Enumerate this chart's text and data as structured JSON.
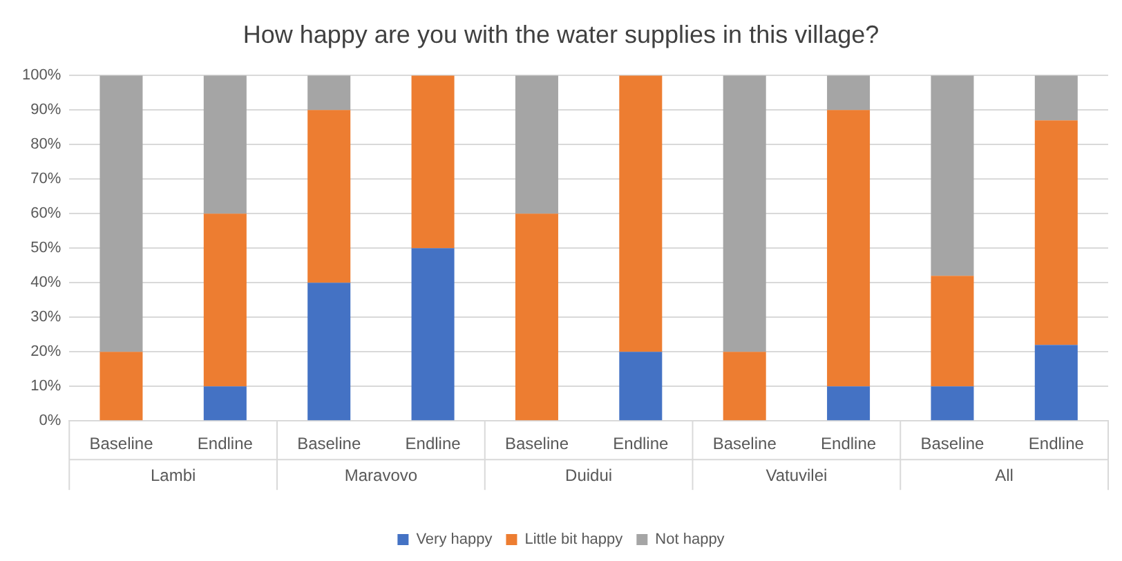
{
  "chart_data": {
    "type": "bar",
    "stacked": true,
    "title": "How happy are you with the water supplies in this village?",
    "categories": [
      "Baseline",
      "Endline",
      "Baseline",
      "Endline",
      "Baseline",
      "Endline",
      "Baseline",
      "Endline",
      "Baseline",
      "Endline"
    ],
    "annotations": [
      "Lambi",
      "Maravovo",
      "Duidui",
      "Vatuvilei",
      "All"
    ],
    "series": [
      {
        "name": "Very happy",
        "color": "#4472c4",
        "values": [
          0,
          10,
          40,
          50,
          0,
          20,
          0,
          10,
          10,
          22
        ]
      },
      {
        "name": "Little bit happy",
        "color": "#ed7d31",
        "values": [
          20,
          50,
          50,
          50,
          60,
          80,
          20,
          80,
          32,
          65
        ]
      },
      {
        "name": "Not happy",
        "color": "#a5a5a5",
        "values": [
          80,
          40,
          10,
          0,
          40,
          0,
          80,
          10,
          58,
          13
        ]
      }
    ],
    "ylim": [
      0,
      100
    ],
    "yticks": [
      {
        "value": 0,
        "label": "0%"
      },
      {
        "value": 10,
        "label": "10%"
      },
      {
        "value": 20,
        "label": "20%"
      },
      {
        "value": 30,
        "label": "30%"
      },
      {
        "value": 40,
        "label": "40%"
      },
      {
        "value": 50,
        "label": "50%"
      },
      {
        "value": 60,
        "label": "60%"
      },
      {
        "value": 70,
        "label": "70%"
      },
      {
        "value": 80,
        "label": "80%"
      },
      {
        "value": 90,
        "label": "90%"
      },
      {
        "value": 100,
        "label": "100%"
      }
    ],
    "grid": "y",
    "legend": "bottom"
  }
}
